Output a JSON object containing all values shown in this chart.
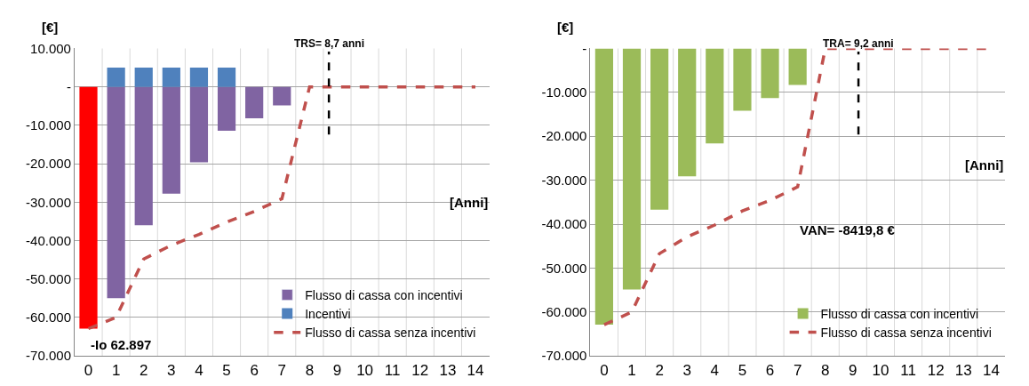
{
  "chart_data": [
    {
      "type": "bar",
      "ylabel": "[€]",
      "xlabel": "[Anni]",
      "x": [
        0,
        1,
        2,
        3,
        4,
        5,
        6,
        7,
        8,
        9,
        10,
        11,
        12,
        13,
        14
      ],
      "xlim": [
        -0.5,
        14.5
      ],
      "xticks": [
        0,
        1,
        2,
        3,
        4,
        5,
        6,
        7,
        8,
        9,
        10,
        11,
        12,
        13,
        14
      ],
      "series": [
        {
          "name": "Flusso di cassa con incentivi",
          "color": "#8064a2",
          "colors": [
            "#ff0000",
            "#8064a2",
            "#8064a2",
            "#8064a2",
            "#8064a2",
            "#8064a2",
            "#8064a2",
            "#8064a2",
            "#8064a2",
            "#8064a2",
            "#8064a2",
            "#8064a2",
            "#8064a2",
            "#8064a2",
            "#8064a2"
          ],
          "values": [
            -62897,
            -55000,
            -36000,
            -27800,
            -19600,
            -11400,
            -8200,
            -4800,
            null,
            null,
            null,
            null,
            null,
            null,
            null
          ]
        },
        {
          "name": "Incentivi",
          "color": "#4f81bd",
          "values": [
            null,
            5000,
            5000,
            5000,
            5000,
            5000,
            null,
            null,
            null,
            null,
            null,
            null,
            null,
            null,
            null
          ]
        },
        {
          "name": "Flusso di cassa senza incentivi",
          "type": "line",
          "line_style": "dashed",
          "marker": "none",
          "color": "#c0504d",
          "values": [
            -62900,
            -60000,
            -44800,
            -41200,
            -38400,
            -35200,
            -32400,
            -29100,
            0,
            0,
            0,
            0,
            0,
            0,
            0
          ]
        }
      ],
      "ylim": [
        -70000,
        10000
      ],
      "yticks": [
        {
          "value": 10000,
          "label": "10.000"
        },
        {
          "value": 0,
          "label": "-"
        },
        {
          "value": -10000,
          "label": "-10.000"
        },
        {
          "value": -20000,
          "label": "-20.000"
        },
        {
          "value": -30000,
          "label": "-30.000"
        },
        {
          "value": -40000,
          "label": "-40.000"
        },
        {
          "value": -50000,
          "label": "-50.000"
        },
        {
          "value": -60000,
          "label": "-60.000"
        },
        {
          "value": -70000,
          "label": "-70.000"
        }
      ],
      "ref_lines": [
        {
          "axis": "x",
          "value": 8.7,
          "label": "TRS= 8,7 anni",
          "color": "#000000",
          "line_style": "dashed"
        }
      ],
      "annotations": [
        {
          "text": "-Io 62.897",
          "x": 0,
          "y": -62897
        }
      ],
      "grid": true,
      "legend": "bottom right"
    },
    {
      "type": "bar",
      "ylabel": "[€]",
      "xlabel": "[Anni]",
      "x": [
        0,
        1,
        2,
        3,
        4,
        5,
        6,
        7,
        8,
        9,
        10,
        11,
        12,
        13,
        14
      ],
      "xlim": [
        -0.5,
        14.5
      ],
      "xticks": [
        0,
        1,
        2,
        3,
        4,
        5,
        6,
        7,
        8,
        9,
        10,
        11,
        12,
        13,
        14
      ],
      "series": [
        {
          "name": "Flusso di cassa con incentivi",
          "color": "#9bbb59",
          "values": [
            -62900,
            -54900,
            -36700,
            -29100,
            -21600,
            -14200,
            -11300,
            -8300,
            null,
            null,
            null,
            null,
            null,
            null,
            null
          ]
        },
        {
          "name": "Flusso di cassa senza incentivi",
          "type": "line",
          "line_style": "dashed",
          "marker": "none",
          "color": "#c0504d",
          "values": [
            -62900,
            -60000,
            -46700,
            -42900,
            -40200,
            -37000,
            -34600,
            -31500,
            0,
            0,
            0,
            0,
            0,
            0,
            0
          ]
        }
      ],
      "ylim": [
        -70000,
        0
      ],
      "yticks": [
        {
          "value": 0,
          "label": "-"
        },
        {
          "value": -10000,
          "label": "-10.000"
        },
        {
          "value": -20000,
          "label": "-20.000"
        },
        {
          "value": -30000,
          "label": "-30.000"
        },
        {
          "value": -40000,
          "label": "-40.000"
        },
        {
          "value": -50000,
          "label": "-50.000"
        },
        {
          "value": -60000,
          "label": "-60.000"
        },
        {
          "value": -70000,
          "label": "-70.000"
        }
      ],
      "ref_lines": [
        {
          "axis": "x",
          "value": 9.2,
          "label": "TRA= 9,2 anni",
          "color": "#000000",
          "line_style": "dashed"
        }
      ],
      "annotations": [
        "VAN= -8419,8 €"
      ],
      "grid": true,
      "legend": "bottom right"
    }
  ]
}
